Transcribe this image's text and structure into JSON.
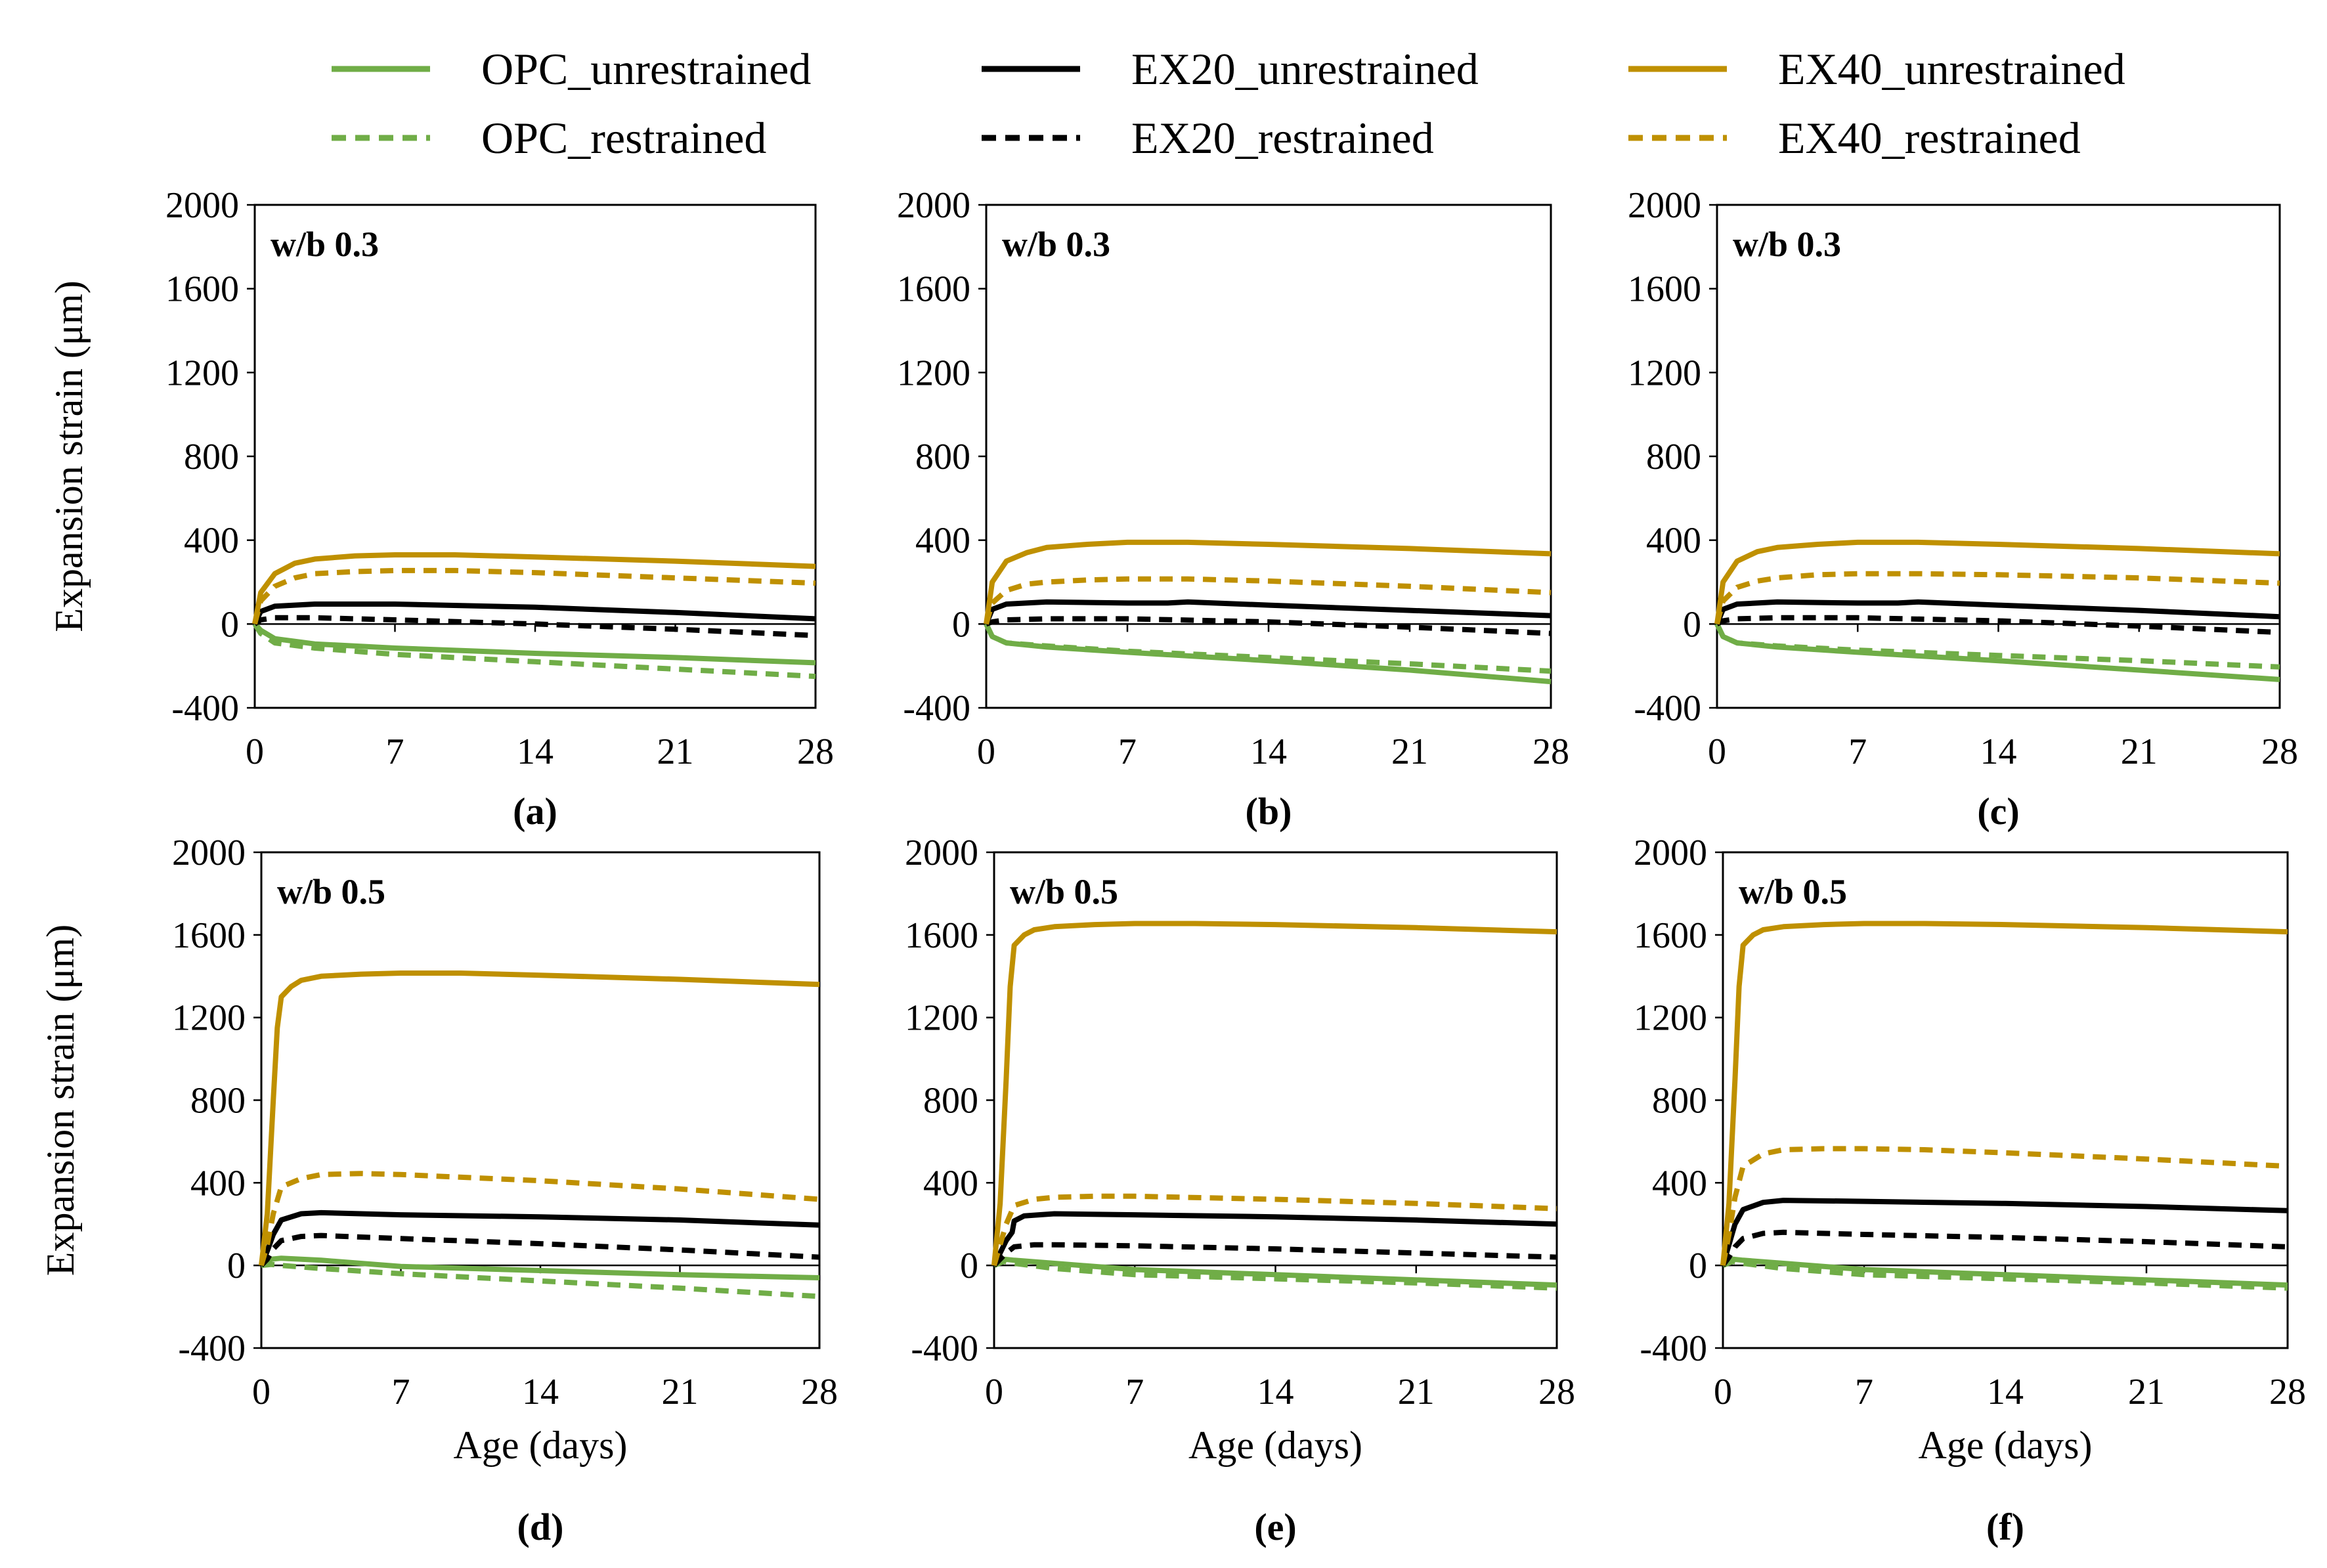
{
  "colors": {
    "OPC": "#70AD47",
    "EX20": "#000000",
    "EX40": "#BF9000"
  },
  "legend": [
    {
      "key": "OPC_unrestrained",
      "label": "OPC_unrestrained",
      "color": "#70AD47",
      "style": "solid"
    },
    {
      "key": "EX20_unrestrained",
      "label": "EX20_unrestrained",
      "color": "#000000",
      "style": "solid"
    },
    {
      "key": "EX40_unrestrained",
      "label": "EX40_unrestrained",
      "color": "#BF9000",
      "style": "solid"
    },
    {
      "key": "OPC_restrained",
      "label": "OPC_restrained",
      "color": "#70AD47",
      "style": "dashed"
    },
    {
      "key": "EX20_restrained",
      "label": "EX20_restrained",
      "color": "#000000",
      "style": "dashed"
    },
    {
      "key": "EX40_restrained",
      "label": "EX40_restrained",
      "color": "#BF9000",
      "style": "dashed"
    }
  ],
  "chart_data": [
    {
      "type": "line",
      "panel": "(a)",
      "annotation": "w/b 0.3",
      "ylabel": "Expansion strain (μm)",
      "xlabel": "",
      "xlim": [
        0,
        28
      ],
      "ylim": [
        -400,
        2000
      ],
      "xticks": [
        "0",
        "7",
        "14",
        "21",
        "28"
      ],
      "yticks": [
        "-400",
        "0",
        "400",
        "800",
        "1200",
        "1600",
        "2000"
      ],
      "series": [
        {
          "name": "OPC_unrestrained",
          "x": [
            0,
            0.3,
            1,
            3,
            7,
            14,
            21,
            28
          ],
          "values": [
            0,
            -30,
            -70,
            -95,
            -115,
            -140,
            -160,
            -185
          ]
        },
        {
          "name": "OPC_restrained",
          "x": [
            0,
            0.3,
            1,
            3,
            7,
            14,
            21,
            28
          ],
          "values": [
            0,
            -45,
            -90,
            -115,
            -145,
            -180,
            -215,
            -250
          ]
        },
        {
          "name": "EX20_unrestrained",
          "x": [
            0,
            0.3,
            1,
            3,
            7,
            14,
            21,
            28
          ],
          "values": [
            0,
            60,
            85,
            95,
            95,
            80,
            55,
            25
          ]
        },
        {
          "name": "EX20_restrained",
          "x": [
            0,
            0.3,
            1,
            3,
            7,
            14,
            21,
            28
          ],
          "values": [
            0,
            20,
            30,
            30,
            20,
            0,
            -25,
            -55
          ]
        },
        {
          "name": "EX40_unrestrained",
          "x": [
            0,
            0.3,
            1,
            2,
            3,
            5,
            7,
            10,
            14,
            21,
            28
          ],
          "values": [
            0,
            150,
            240,
            290,
            310,
            325,
            330,
            330,
            320,
            300,
            275
          ]
        },
        {
          "name": "EX40_restrained",
          "x": [
            0,
            0.3,
            1,
            2,
            3,
            5,
            7,
            10,
            14,
            21,
            28
          ],
          "values": [
            0,
            110,
            180,
            220,
            240,
            250,
            255,
            255,
            245,
            220,
            195
          ]
        }
      ]
    },
    {
      "type": "line",
      "panel": "(b)",
      "annotation": "w/b 0.3",
      "ylabel": "",
      "xlabel": "",
      "xlim": [
        0,
        28
      ],
      "ylim": [
        -400,
        2000
      ],
      "xticks": [
        "0",
        "7",
        "14",
        "21",
        "28"
      ],
      "yticks": [
        "-400",
        "0",
        "400",
        "800",
        "1200",
        "1600",
        "2000"
      ],
      "series": [
        {
          "name": "OPC_unrestrained",
          "x": [
            0,
            0.3,
            1,
            3,
            7,
            14,
            21,
            28
          ],
          "values": [
            0,
            -60,
            -90,
            -110,
            -135,
            -175,
            -220,
            -275
          ]
        },
        {
          "name": "OPC_restrained",
          "x": [
            0,
            0.3,
            1,
            3,
            7,
            14,
            21,
            28
          ],
          "values": [
            0,
            -60,
            -90,
            -105,
            -130,
            -160,
            -190,
            -225
          ]
        },
        {
          "name": "EX20_unrestrained",
          "x": [
            0,
            0.3,
            1,
            3,
            7,
            9,
            10,
            14,
            21,
            28
          ],
          "values": [
            0,
            70,
            95,
            105,
            100,
            100,
            105,
            90,
            65,
            40
          ]
        },
        {
          "name": "EX20_restrained",
          "x": [
            0,
            0.3,
            1,
            3,
            7,
            14,
            21,
            28
          ],
          "values": [
            0,
            10,
            20,
            25,
            25,
            10,
            -15,
            -45
          ]
        },
        {
          "name": "EX40_unrestrained",
          "x": [
            0,
            0.3,
            1,
            2,
            3,
            5,
            7,
            10,
            14,
            21,
            28
          ],
          "values": [
            0,
            200,
            300,
            340,
            365,
            380,
            390,
            390,
            380,
            360,
            335
          ]
        },
        {
          "name": "EX40_restrained",
          "x": [
            0,
            0.3,
            1,
            2,
            3,
            5,
            7,
            10,
            14,
            21,
            28
          ],
          "values": [
            0,
            100,
            160,
            190,
            200,
            210,
            215,
            215,
            205,
            180,
            150
          ]
        }
      ]
    },
    {
      "type": "line",
      "panel": "(c)",
      "annotation": "w/b 0.3",
      "ylabel": "",
      "xlabel": "",
      "xlim": [
        0,
        28
      ],
      "ylim": [
        -400,
        2000
      ],
      "xticks": [
        "0",
        "7",
        "14",
        "21",
        "28"
      ],
      "yticks": [
        "-400",
        "0",
        "400",
        "800",
        "1200",
        "1600",
        "2000"
      ],
      "series": [
        {
          "name": "OPC_unrestrained",
          "x": [
            0,
            0.3,
            1,
            3,
            7,
            14,
            21,
            28
          ],
          "values": [
            0,
            -60,
            -90,
            -110,
            -135,
            -175,
            -220,
            -265
          ]
        },
        {
          "name": "OPC_restrained",
          "x": [
            0,
            0.3,
            1,
            3,
            7,
            14,
            21,
            28
          ],
          "values": [
            0,
            -60,
            -90,
            -105,
            -125,
            -150,
            -175,
            -205
          ]
        },
        {
          "name": "EX20_unrestrained",
          "x": [
            0,
            0.3,
            1,
            3,
            7,
            9,
            10,
            14,
            21,
            28
          ],
          "values": [
            0,
            70,
            95,
            105,
            100,
            100,
            105,
            90,
            65,
            35
          ]
        },
        {
          "name": "EX20_restrained",
          "x": [
            0,
            0.3,
            1,
            3,
            7,
            14,
            21,
            28
          ],
          "values": [
            0,
            15,
            25,
            30,
            30,
            15,
            -10,
            -40
          ]
        },
        {
          "name": "EX40_unrestrained",
          "x": [
            0,
            0.3,
            1,
            2,
            3,
            5,
            7,
            10,
            14,
            21,
            28
          ],
          "values": [
            0,
            200,
            300,
            345,
            365,
            380,
            390,
            390,
            380,
            360,
            335
          ]
        },
        {
          "name": "EX40_restrained",
          "x": [
            0,
            0.3,
            1,
            2,
            3,
            5,
            7,
            10,
            14,
            21,
            28
          ],
          "values": [
            0,
            110,
            175,
            205,
            220,
            235,
            240,
            240,
            235,
            220,
            195
          ]
        }
      ]
    },
    {
      "type": "line",
      "panel": "(d)",
      "annotation": "w/b 0.5",
      "ylabel": "Expansion strain (μm)",
      "xlabel": "Age (days)",
      "xlim": [
        0,
        28
      ],
      "ylim": [
        -400,
        2000
      ],
      "xticks": [
        "0",
        "7",
        "14",
        "21",
        "28"
      ],
      "yticks": [
        "-400",
        "0",
        "400",
        "800",
        "1200",
        "1600",
        "2000"
      ],
      "series": [
        {
          "name": "OPC_unrestrained",
          "x": [
            0,
            0.5,
            1,
            3,
            7,
            14,
            21,
            28
          ],
          "values": [
            0,
            30,
            35,
            25,
            -5,
            -25,
            -45,
            -60
          ]
        },
        {
          "name": "OPC_restrained",
          "x": [
            0,
            0.5,
            1,
            3,
            7,
            14,
            21,
            28
          ],
          "values": [
            0,
            5,
            0,
            -15,
            -40,
            -75,
            -110,
            -150
          ]
        },
        {
          "name": "EX20_unrestrained",
          "x": [
            0,
            0.3,
            0.6,
            1,
            2,
            3,
            7,
            14,
            21,
            28
          ],
          "values": [
            0,
            70,
            150,
            220,
            250,
            255,
            245,
            235,
            220,
            195
          ]
        },
        {
          "name": "EX20_restrained",
          "x": [
            0,
            0.3,
            0.6,
            1,
            2,
            3,
            7,
            14,
            21,
            28
          ],
          "values": [
            0,
            30,
            80,
            120,
            140,
            145,
            130,
            105,
            75,
            40
          ]
        },
        {
          "name": "EX40_unrestrained",
          "x": [
            0,
            0.3,
            0.6,
            0.8,
            1,
            1.5,
            2,
            3,
            5,
            7,
            10,
            14,
            21,
            28
          ],
          "values": [
            0,
            250,
            800,
            1150,
            1300,
            1350,
            1380,
            1400,
            1410,
            1415,
            1415,
            1405,
            1385,
            1360
          ]
        },
        {
          "name": "EX40_restrained",
          "x": [
            0,
            0.3,
            0.6,
            1,
            2,
            3,
            5,
            7,
            14,
            21,
            28
          ],
          "values": [
            0,
            100,
            250,
            380,
            420,
            440,
            445,
            440,
            410,
            370,
            320
          ]
        }
      ]
    },
    {
      "type": "line",
      "panel": "(e)",
      "annotation": "w/b 0.5",
      "ylabel": "",
      "xlabel": "Age (days)",
      "xlim": [
        0,
        28
      ],
      "ylim": [
        -400,
        2000
      ],
      "xticks": [
        "0",
        "7",
        "14",
        "21",
        "28"
      ],
      "yticks": [
        "-400",
        "0",
        "400",
        "800",
        "1200",
        "1600",
        "2000"
      ],
      "series": [
        {
          "name": "OPC_unrestrained",
          "x": [
            0,
            0.5,
            1,
            3,
            7,
            14,
            21,
            28
          ],
          "values": [
            0,
            30,
            25,
            10,
            -20,
            -45,
            -70,
            -95
          ]
        },
        {
          "name": "OPC_restrained",
          "x": [
            0,
            0.5,
            1,
            3,
            7,
            14,
            21,
            28
          ],
          "values": [
            0,
            20,
            10,
            -15,
            -45,
            -65,
            -85,
            -110
          ]
        },
        {
          "name": "EX20_unrestrained",
          "x": [
            0,
            0.3,
            0.6,
            0.9,
            1,
            1.5,
            3,
            7,
            14,
            21,
            28
          ],
          "values": [
            0,
            60,
            120,
            160,
            215,
            240,
            250,
            245,
            235,
            220,
            200
          ]
        },
        {
          "name": "EX20_restrained",
          "x": [
            0,
            0.3,
            0.6,
            1,
            2,
            3,
            7,
            14,
            21,
            28
          ],
          "values": [
            0,
            30,
            60,
            90,
            100,
            100,
            95,
            80,
            60,
            40
          ]
        },
        {
          "name": "EX40_unrestrained",
          "x": [
            0,
            0.3,
            0.6,
            0.8,
            1,
            1.5,
            2,
            3,
            5,
            7,
            10,
            14,
            21,
            28
          ],
          "values": [
            0,
            300,
            900,
            1350,
            1550,
            1600,
            1625,
            1640,
            1650,
            1655,
            1655,
            1650,
            1635,
            1615
          ]
        },
        {
          "name": "EX40_restrained",
          "x": [
            0,
            0.3,
            0.6,
            1,
            2,
            3,
            5,
            7,
            14,
            21,
            28
          ],
          "values": [
            0,
            100,
            200,
            290,
            320,
            330,
            335,
            335,
            320,
            300,
            275
          ]
        }
      ]
    },
    {
      "type": "line",
      "panel": "(f)",
      "annotation": "w/b 0.5",
      "ylabel": "",
      "xlabel": "Age (days)",
      "xlim": [
        0,
        28
      ],
      "ylim": [
        -400,
        2000
      ],
      "xticks": [
        "0",
        "7",
        "14",
        "21",
        "28"
      ],
      "yticks": [
        "-400",
        "0",
        "400",
        "800",
        "1200",
        "1600",
        "2000"
      ],
      "series": [
        {
          "name": "OPC_unrestrained",
          "x": [
            0,
            0.5,
            1,
            3,
            7,
            14,
            21,
            28
          ],
          "values": [
            0,
            30,
            25,
            10,
            -20,
            -45,
            -70,
            -95
          ]
        },
        {
          "name": "OPC_restrained",
          "x": [
            0,
            0.5,
            1,
            3,
            7,
            14,
            21,
            28
          ],
          "values": [
            0,
            20,
            10,
            -15,
            -45,
            -65,
            -85,
            -110
          ]
        },
        {
          "name": "EX20_unrestrained",
          "x": [
            0,
            0.3,
            0.6,
            1,
            2,
            3,
            7,
            14,
            21,
            28
          ],
          "values": [
            0,
            100,
            200,
            270,
            305,
            315,
            310,
            300,
            285,
            265
          ]
        },
        {
          "name": "EX20_restrained",
          "x": [
            0,
            0.3,
            0.6,
            1,
            2,
            3,
            7,
            14,
            21,
            28
          ],
          "values": [
            0,
            40,
            90,
            130,
            155,
            160,
            150,
            135,
            115,
            90
          ]
        },
        {
          "name": "EX40_unrestrained",
          "x": [
            0,
            0.3,
            0.6,
            0.8,
            1,
            1.5,
            2,
            3,
            5,
            7,
            10,
            14,
            21,
            28
          ],
          "values": [
            0,
            300,
            900,
            1350,
            1550,
            1600,
            1625,
            1640,
            1650,
            1655,
            1655,
            1650,
            1635,
            1615
          ]
        },
        {
          "name": "EX40_restrained",
          "x": [
            0,
            0.3,
            0.6,
            1,
            2,
            3,
            5,
            7,
            10,
            14,
            21,
            28
          ],
          "values": [
            0,
            150,
            330,
            480,
            540,
            560,
            565,
            565,
            560,
            545,
            515,
            480
          ]
        }
      ]
    }
  ]
}
